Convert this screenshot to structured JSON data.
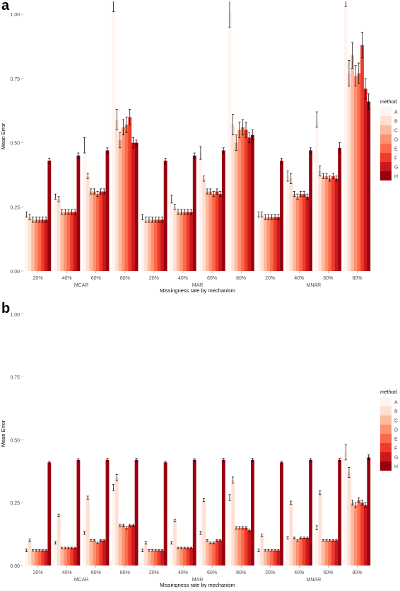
{
  "colors": {
    "methods": [
      "#fff5f0",
      "#fee0d2",
      "#fcbba1",
      "#fc9272",
      "#fb6a4a",
      "#ef3b2c",
      "#cb181d",
      "#99000d"
    ],
    "background": "#ffffff",
    "errorbar": "#000000",
    "axis_text": "#4d4d4d"
  },
  "chart_data": [
    {
      "panel_label": "a",
      "type": "bar",
      "title": "",
      "xlabel": "Missingness rate by mechanism",
      "ylabel": "Mean Error",
      "ylim": [
        0,
        1.05
      ],
      "yticks": [
        "0.00",
        "0.25",
        "0.50",
        "0.75",
        "1.00"
      ],
      "ytick_values": [
        0,
        0.25,
        0.5,
        0.75,
        1.0
      ],
      "grid": false,
      "legend_title": "method",
      "legend_position": "right",
      "methods": [
        "A",
        "B",
        "C",
        "D",
        "E",
        "F",
        "G",
        "H"
      ],
      "mechanisms": [
        "MCAR",
        "MAR",
        "MNAR"
      ],
      "categories": [
        "20%",
        "40%",
        "60%",
        "80%",
        "20%",
        "40%",
        "60%",
        "80%",
        "20%",
        "40%",
        "60%",
        "80%"
      ],
      "groups": [
        {
          "values": [
            0.22,
            0.21,
            0.2,
            0.2,
            0.2,
            0.2,
            0.2,
            0.43
          ],
          "errors": [
            0.01,
            0.01,
            0.01,
            0.01,
            0.01,
            0.01,
            0.01,
            0.01
          ]
        },
        {
          "values": [
            0.29,
            0.28,
            0.23,
            0.23,
            0.23,
            0.23,
            0.23,
            0.45
          ],
          "errors": [
            0.01,
            0.01,
            0.01,
            0.01,
            0.01,
            0.01,
            0.01,
            0.01
          ]
        },
        {
          "values": [
            0.49,
            0.37,
            0.31,
            0.31,
            0.3,
            0.31,
            0.31,
            0.47
          ],
          "errors": [
            0.03,
            0.01,
            0.01,
            0.01,
            0.01,
            0.01,
            0.01,
            0.01
          ]
        },
        {
          "values": [
            1.05,
            0.59,
            0.51,
            0.56,
            0.57,
            0.6,
            0.5,
            0.5
          ],
          "errors": [
            0.04,
            0.04,
            0.03,
            0.03,
            0.03,
            0.03,
            0.02,
            0.01
          ]
        },
        {
          "values": [
            0.21,
            0.2,
            0.2,
            0.2,
            0.2,
            0.2,
            0.2,
            0.43
          ],
          "errors": [
            0.01,
            0.01,
            0.01,
            0.01,
            0.01,
            0.01,
            0.01,
            0.01
          ]
        },
        {
          "values": [
            0.28,
            0.25,
            0.23,
            0.23,
            0.23,
            0.23,
            0.23,
            0.45
          ],
          "errors": [
            0.015,
            0.01,
            0.01,
            0.01,
            0.01,
            0.01,
            0.01,
            0.01
          ]
        },
        {
          "values": [
            0.46,
            0.36,
            0.31,
            0.31,
            0.3,
            0.31,
            0.3,
            0.47
          ],
          "errors": [
            0.025,
            0.01,
            0.01,
            0.01,
            0.01,
            0.01,
            0.01,
            0.01
          ]
        },
        {
          "values": [
            1.01,
            0.57,
            0.5,
            0.55,
            0.56,
            0.55,
            0.52,
            0.53
          ],
          "errors": [
            0.06,
            0.04,
            0.03,
            0.03,
            0.03,
            0.03,
            0.02,
            0.02
          ]
        },
        {
          "values": [
            0.22,
            0.22,
            0.21,
            0.21,
            0.21,
            0.21,
            0.21,
            0.43
          ],
          "errors": [
            0.01,
            0.01,
            0.01,
            0.01,
            0.01,
            0.01,
            0.01,
            0.01
          ]
        },
        {
          "values": [
            0.37,
            0.36,
            0.3,
            0.29,
            0.3,
            0.3,
            0.29,
            0.47
          ],
          "errors": [
            0.02,
            0.02,
            0.01,
            0.01,
            0.01,
            0.01,
            0.01,
            0.01
          ]
        },
        {
          "values": [
            0.59,
            0.39,
            0.37,
            0.37,
            0.36,
            0.37,
            0.36,
            0.48
          ],
          "errors": [
            0.03,
            0.02,
            0.01,
            0.01,
            0.01,
            0.01,
            0.01,
            0.02
          ]
        },
        {
          "values": [
            1.08,
            0.77,
            0.84,
            0.76,
            0.77,
            0.88,
            0.71,
            0.66
          ],
          "errors": [
            0.05,
            0.05,
            0.05,
            0.04,
            0.04,
            0.05,
            0.04,
            0.03
          ]
        }
      ]
    },
    {
      "panel_label": "b",
      "type": "bar",
      "title": "",
      "xlabel": "Missingness rate by mechanism",
      "ylabel": "Mean Error",
      "ylim": [
        0,
        1.05
      ],
      "yticks": [
        "0.00",
        "0.25",
        "0.50",
        "0.75",
        "1.00"
      ],
      "ytick_values": [
        0,
        0.25,
        0.5,
        0.75,
        1.0
      ],
      "grid": false,
      "legend_title": "method",
      "legend_position": "right",
      "methods": [
        "A",
        "B",
        "C",
        "D",
        "E",
        "F",
        "G",
        "H"
      ],
      "mechanisms": [
        "MCAR",
        "MAR",
        "MNAR"
      ],
      "categories": [
        "20%",
        "40%",
        "60%",
        "80%",
        "20%",
        "40%",
        "60%",
        "80%",
        "20%",
        "40%",
        "60%",
        "80%"
      ],
      "groups": [
        {
          "values": [
            0.06,
            0.1,
            0.06,
            0.06,
            0.06,
            0.06,
            0.06,
            0.41
          ],
          "errors": [
            0.005,
            0.005,
            0.003,
            0.003,
            0.003,
            0.003,
            0.003,
            0.005
          ]
        },
        {
          "values": [
            0.09,
            0.2,
            0.07,
            0.07,
            0.07,
            0.07,
            0.07,
            0.42
          ],
          "errors": [
            0.005,
            0.005,
            0.003,
            0.003,
            0.003,
            0.003,
            0.003,
            0.005
          ]
        },
        {
          "values": [
            0.13,
            0.27,
            0.1,
            0.1,
            0.09,
            0.1,
            0.1,
            0.42
          ],
          "errors": [
            0.006,
            0.006,
            0.003,
            0.003,
            0.003,
            0.003,
            0.003,
            0.006
          ]
        },
        {
          "values": [
            0.31,
            0.35,
            0.16,
            0.16,
            0.15,
            0.16,
            0.16,
            0.42
          ],
          "errors": [
            0.012,
            0.012,
            0.005,
            0.005,
            0.005,
            0.005,
            0.005,
            0.006
          ]
        },
        {
          "values": [
            0.06,
            0.09,
            0.06,
            0.06,
            0.06,
            0.06,
            0.06,
            0.41
          ],
          "errors": [
            0.005,
            0.005,
            0.003,
            0.003,
            0.003,
            0.003,
            0.003,
            0.005
          ]
        },
        {
          "values": [
            0.09,
            0.18,
            0.07,
            0.07,
            0.07,
            0.07,
            0.07,
            0.42
          ],
          "errors": [
            0.005,
            0.005,
            0.003,
            0.003,
            0.003,
            0.003,
            0.003,
            0.005
          ]
        },
        {
          "values": [
            0.13,
            0.26,
            0.1,
            0.09,
            0.09,
            0.1,
            0.1,
            0.42
          ],
          "errors": [
            0.006,
            0.006,
            0.003,
            0.003,
            0.003,
            0.003,
            0.003,
            0.006
          ]
        },
        {
          "values": [
            0.27,
            0.34,
            0.15,
            0.15,
            0.15,
            0.15,
            0.14,
            0.42
          ],
          "errors": [
            0.012,
            0.012,
            0.005,
            0.005,
            0.005,
            0.005,
            0.005,
            0.006
          ]
        },
        {
          "values": [
            0.06,
            0.12,
            0.06,
            0.06,
            0.06,
            0.06,
            0.06,
            0.41
          ],
          "errors": [
            0.005,
            0.005,
            0.003,
            0.003,
            0.003,
            0.003,
            0.003,
            0.005
          ]
        },
        {
          "values": [
            0.11,
            0.25,
            0.11,
            0.1,
            0.11,
            0.11,
            0.11,
            0.42
          ],
          "errors": [
            0.005,
            0.006,
            0.003,
            0.003,
            0.003,
            0.003,
            0.003,
            0.005
          ]
        },
        {
          "values": [
            0.15,
            0.29,
            0.1,
            0.1,
            0.1,
            0.1,
            0.1,
            0.42
          ],
          "errors": [
            0.008,
            0.008,
            0.003,
            0.003,
            0.003,
            0.003,
            0.003,
            0.006
          ]
        },
        {
          "values": [
            0.45,
            0.37,
            0.25,
            0.24,
            0.26,
            0.25,
            0.24,
            0.43
          ],
          "errors": [
            0.03,
            0.02,
            0.01,
            0.01,
            0.01,
            0.01,
            0.01,
            0.01
          ]
        }
      ]
    }
  ]
}
